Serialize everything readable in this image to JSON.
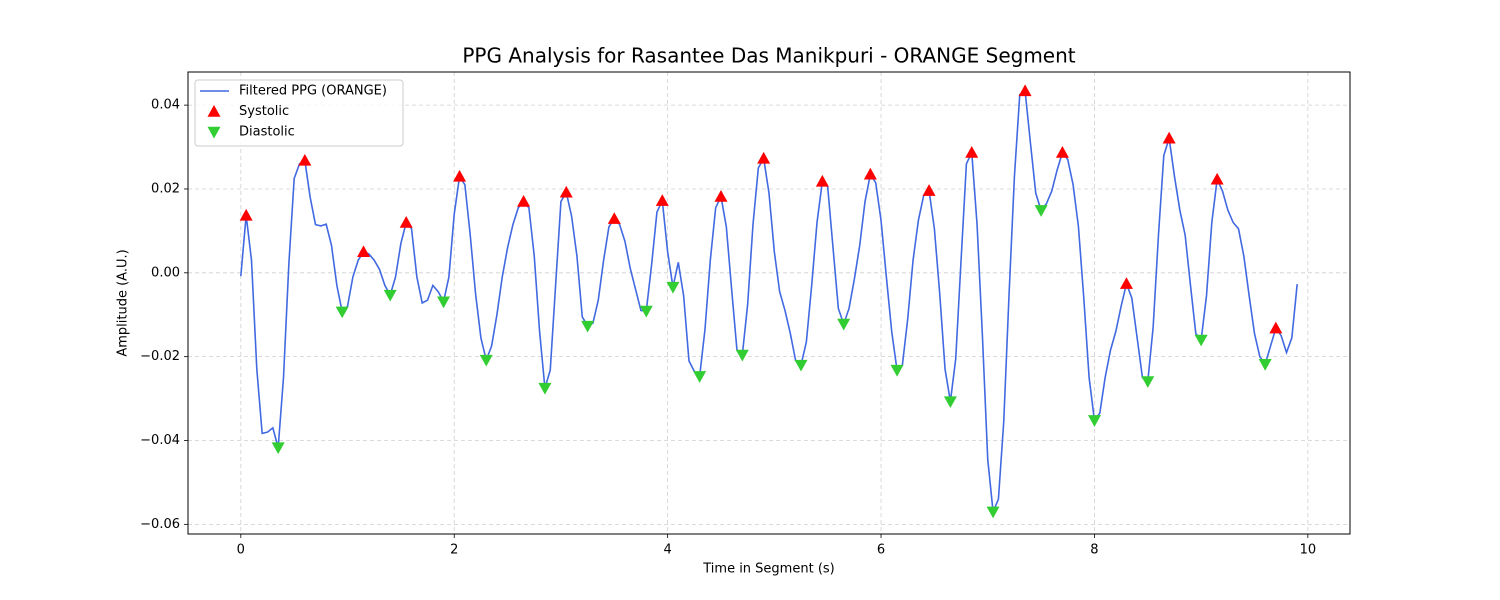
{
  "chart_data": {
    "type": "line",
    "title": "PPG Analysis for Rasantee Das Manikpuri - ORANGE Segment",
    "x_label": "Time in Segment (s)",
    "y_label": "Amplitude (A.U.)",
    "xlim": [
      -0.495,
      10.395
    ],
    "ylim": [
      -0.0623,
      0.0479
    ],
    "xticks": [
      0,
      2,
      4,
      6,
      8,
      10
    ],
    "yticks": [
      {
        "value": -0.06,
        "label": "−0.06"
      },
      {
        "value": -0.04,
        "label": "−0.04"
      },
      {
        "value": -0.02,
        "label": "−0.02"
      },
      {
        "value": 0,
        "label": "0.00"
      },
      0.02,
      0.04
    ],
    "grid": true,
    "legend": "upper left",
    "series": [
      {
        "name": "Filtered PPG (ORANGE)",
        "type": "line",
        "color": "#4169e1",
        "x": [
          0,
          0.05,
          0.1,
          0.15,
          0.2,
          0.25,
          0.3,
          0.35,
          0.4,
          0.45,
          0.5,
          0.55,
          0.6,
          0.65,
          0.7,
          0.75,
          0.8,
          0.85,
          0.9,
          0.95,
          1.0,
          1.05,
          1.1,
          1.15,
          1.2,
          1.25,
          1.3,
          1.35,
          1.4,
          1.45,
          1.5,
          1.55,
          1.6,
          1.65,
          1.7,
          1.75,
          1.8,
          1.85,
          1.9,
          1.95,
          2.0,
          2.05,
          2.1,
          2.15,
          2.2,
          2.25,
          2.3,
          2.35,
          2.4,
          2.45,
          2.5,
          2.55,
          2.6,
          2.65,
          2.7,
          2.75,
          2.8,
          2.85,
          2.9,
          2.95,
          3.0,
          3.05,
          3.1,
          3.15,
          3.2,
          3.25,
          3.3,
          3.35,
          3.4,
          3.45,
          3.5,
          3.55,
          3.6,
          3.65,
          3.7,
          3.75,
          3.8,
          3.85,
          3.9,
          3.95,
          4.0,
          4.05,
          4.1,
          4.15,
          4.2,
          4.25,
          4.3,
          4.35,
          4.4,
          4.45,
          4.5,
          4.55,
          4.6,
          4.65,
          4.7,
          4.75,
          4.8,
          4.85,
          4.9,
          4.95,
          5.0,
          5.05,
          5.1,
          5.15,
          5.2,
          5.25,
          5.3,
          5.35,
          5.4,
          5.45,
          5.5,
          5.55,
          5.6,
          5.65,
          5.7,
          5.75,
          5.8,
          5.85,
          5.9,
          5.95,
          6.0,
          6.05,
          6.1,
          6.15,
          6.2,
          6.25,
          6.3,
          6.35,
          6.4,
          6.45,
          6.5,
          6.55,
          6.6,
          6.65,
          6.7,
          6.75,
          6.8,
          6.85,
          6.9,
          6.95,
          7.0,
          7.05,
          7.1,
          7.15,
          7.2,
          7.25,
          7.3,
          7.35,
          7.4,
          7.45,
          7.5,
          7.55,
          7.6,
          7.65,
          7.7,
          7.75,
          7.8,
          7.85,
          7.9,
          7.95,
          8.0,
          8.05,
          8.1,
          8.15,
          8.2,
          8.25,
          8.3,
          8.35,
          8.4,
          8.45,
          8.5,
          8.55,
          8.6,
          8.65,
          8.7,
          8.75,
          8.8,
          8.85,
          8.9,
          8.95,
          9.0,
          9.05,
          9.1,
          9.15,
          9.2,
          9.25,
          9.3,
          9.35,
          9.4,
          9.45,
          9.5,
          9.55,
          9.6,
          9.65,
          9.7,
          9.75,
          9.8,
          9.85,
          9.9
        ],
        "values": [
          -0.0008,
          0.0137,
          0.003,
          -0.023,
          -0.0383,
          -0.038,
          -0.037,
          -0.0417,
          -0.025,
          0.002,
          0.0225,
          0.026,
          0.0268,
          0.018,
          0.0115,
          0.0112,
          0.0116,
          0.0065,
          -0.003,
          -0.0093,
          -0.008,
          -0.001,
          0.003,
          0.005,
          0.0045,
          0.003,
          0.0008,
          -0.003,
          -0.0053,
          -0.001,
          0.007,
          0.012,
          0.0105,
          -0.001,
          -0.0072,
          -0.0065,
          -0.003,
          -0.0045,
          -0.0069,
          -0.001,
          0.014,
          0.023,
          0.021,
          0.009,
          -0.005,
          -0.0155,
          -0.0208,
          -0.0175,
          -0.01,
          -0.001,
          0.006,
          0.0115,
          0.0155,
          0.017,
          0.0155,
          0.004,
          -0.014,
          -0.0275,
          -0.0232,
          -0.003,
          0.017,
          0.0192,
          0.0135,
          0.004,
          -0.0105,
          -0.0127,
          -0.012,
          -0.0065,
          0.003,
          0.011,
          0.0129,
          0.0115,
          0.0075,
          0.001,
          -0.004,
          -0.009,
          -0.0091,
          0.002,
          0.0145,
          0.0172,
          0.005,
          -0.0034,
          0.0025,
          -0.0055,
          -0.021,
          -0.0235,
          -0.0247,
          -0.0135,
          0.003,
          0.0155,
          0.0182,
          0.011,
          -0.004,
          -0.0185,
          -0.0196,
          -0.0075,
          0.0115,
          0.025,
          0.0273,
          0.019,
          0.005,
          -0.0045,
          -0.009,
          -0.0145,
          -0.021,
          -0.022,
          -0.0165,
          -0.003,
          0.012,
          0.0218,
          0.0205,
          0.006,
          -0.0085,
          -0.0122,
          -0.0085,
          -0.0015,
          0.0065,
          0.017,
          0.0235,
          0.0215,
          0.0125,
          -0.001,
          -0.014,
          -0.0232,
          -0.022,
          -0.011,
          0.003,
          0.0125,
          0.0185,
          0.0196,
          0.0105,
          -0.005,
          -0.023,
          -0.0307,
          -0.0205,
          0.003,
          0.026,
          0.0287,
          0.0115,
          -0.015,
          -0.0445,
          -0.057,
          -0.054,
          -0.0355,
          -0.005,
          0.023,
          0.0425,
          0.0434,
          0.031,
          0.019,
          0.0149,
          0.0165,
          0.0195,
          0.0245,
          0.0287,
          0.027,
          0.021,
          0.011,
          -0.006,
          -0.025,
          -0.0352,
          -0.0335,
          -0.025,
          -0.0185,
          -0.014,
          -0.008,
          -0.0026,
          -0.006,
          -0.0155,
          -0.025,
          -0.0259,
          -0.013,
          0.009,
          0.028,
          0.0321,
          0.023,
          0.015,
          0.009,
          -0.003,
          -0.0145,
          -0.016,
          -0.0055,
          0.012,
          0.0223,
          0.0195,
          0.015,
          0.012,
          0.0105,
          0.004,
          -0.0055,
          -0.0145,
          -0.02,
          -0.0218,
          -0.0175,
          -0.0132,
          -0.015,
          -0.019,
          -0.0155,
          -0.0027
        ]
      },
      {
        "name": "Systolic",
        "type": "scatter",
        "marker": "up",
        "color": "#ff0000",
        "x": [
          0.05,
          0.6,
          1.15,
          1.55,
          2.05,
          2.65,
          3.05,
          3.5,
          3.95,
          4.5,
          4.9,
          5.45,
          5.9,
          6.45,
          6.85,
          7.35,
          7.7,
          8.3,
          8.7,
          9.15,
          9.7
        ],
        "values": [
          0.0137,
          0.0268,
          0.005,
          0.012,
          0.023,
          0.017,
          0.0192,
          0.0129,
          0.0172,
          0.0182,
          0.0273,
          0.0218,
          0.0235,
          0.0196,
          0.0287,
          0.0434,
          0.0287,
          -0.0026,
          0.0321,
          0.0223,
          -0.0132
        ]
      },
      {
        "name": "Diastolic",
        "type": "scatter",
        "marker": "down",
        "color": "#32cd32",
        "x": [
          0.35,
          0.95,
          1.4,
          1.9,
          2.3,
          2.85,
          3.25,
          3.8,
          4.05,
          4.3,
          4.7,
          5.25,
          5.65,
          6.15,
          6.65,
          7.05,
          7.5,
          8.0,
          8.5,
          9.0,
          9.6
        ],
        "values": [
          -0.0417,
          -0.0093,
          -0.0053,
          -0.0069,
          -0.0208,
          -0.0275,
          -0.0127,
          -0.0091,
          -0.0034,
          -0.0247,
          -0.0196,
          -0.022,
          -0.0122,
          -0.0232,
          -0.0307,
          -0.057,
          0.0149,
          -0.0352,
          -0.0259,
          -0.016,
          -0.0218
        ]
      }
    ]
  }
}
